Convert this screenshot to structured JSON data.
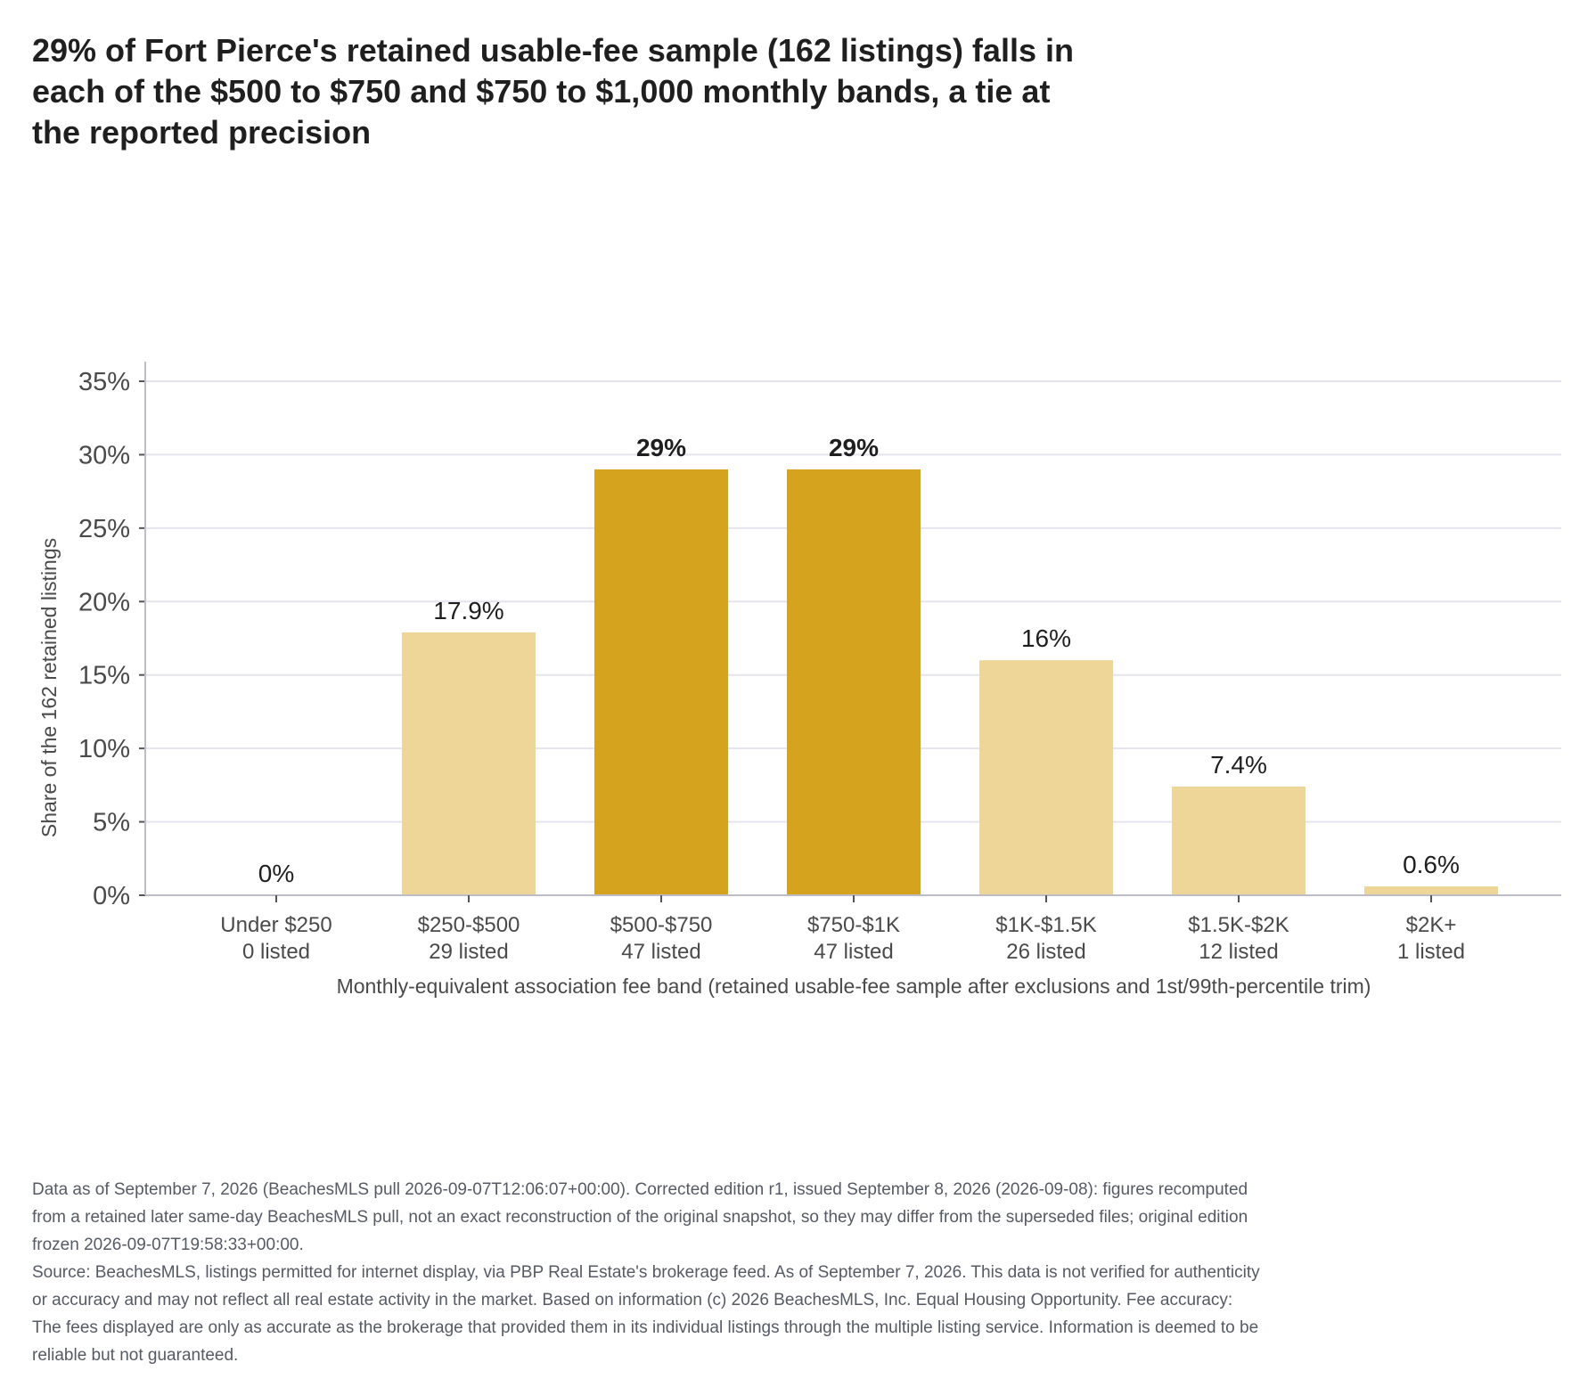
{
  "title": "29% of Fort Pierce's retained usable-fee sample (162 listings) falls in each of the $500 to $750 and $750 to $1,000 monthly bands, a tie at the reported precision",
  "chart_data": {
    "type": "bar",
    "categories": [
      "Under $250",
      "$250-$500",
      "$500-$750",
      "$750-$1K",
      "$1K-$1.5K",
      "$1.5K-$2K",
      "$2K+"
    ],
    "category_counts": [
      "0 listed",
      "29 listed",
      "47 listed",
      "47 listed",
      "26 listed",
      "12 listed",
      "1 listed"
    ],
    "values": [
      0,
      17.9,
      29,
      29,
      16,
      7.4,
      0.6
    ],
    "value_labels": [
      "0%",
      "17.9%",
      "29%",
      "29%",
      "16%",
      "7.4%",
      "0.6%"
    ],
    "highlighted": [
      false,
      false,
      true,
      true,
      false,
      false,
      false
    ],
    "xlabel": "Monthly-equivalent association fee band (retained usable-fee sample after exclusions and 1st/99th-percentile trim)",
    "ylabel": "Share of the 162 retained listings",
    "ylim": [
      0,
      35
    ],
    "yticks": [
      0,
      5,
      10,
      15,
      20,
      25,
      30,
      35
    ],
    "ytick_labels": [
      "0%",
      "5%",
      "10%",
      "15%",
      "20%",
      "25%",
      "30%",
      "35%"
    ],
    "grid": true,
    "legend": "none",
    "colors": {
      "highlight": "#d6a31e",
      "base": "#edd697",
      "grid": "#e4e4ee",
      "axis": "#bdbdc9"
    }
  },
  "notes": {
    "data_line": "Data as of September 7, 2026 (BeachesMLS pull 2026-09-07T12:06:07+00:00). Corrected edition r1, issued September 8, 2026 (2026-09-08): figures recomputed from a retained later same-day BeachesMLS pull, not an exact reconstruction of the original snapshot, so they may differ from the superseded files; original edition frozen 2026-09-07T19:58:33+00:00.",
    "source_line": "Source: BeachesMLS, listings permitted for internet display, via PBP Real Estate's brokerage feed. As of September 7, 2026. This data is not verified for authenticity or accuracy and may not reflect all real estate activity in the market. Based on information (c) 2026 BeachesMLS, Inc. Equal Housing Opportunity. Fee accuracy: The fees displayed are only as accurate as the brokerage that provided them in its individual listings through the multiple listing service. Information is deemed to be reliable but not guaranteed."
  }
}
